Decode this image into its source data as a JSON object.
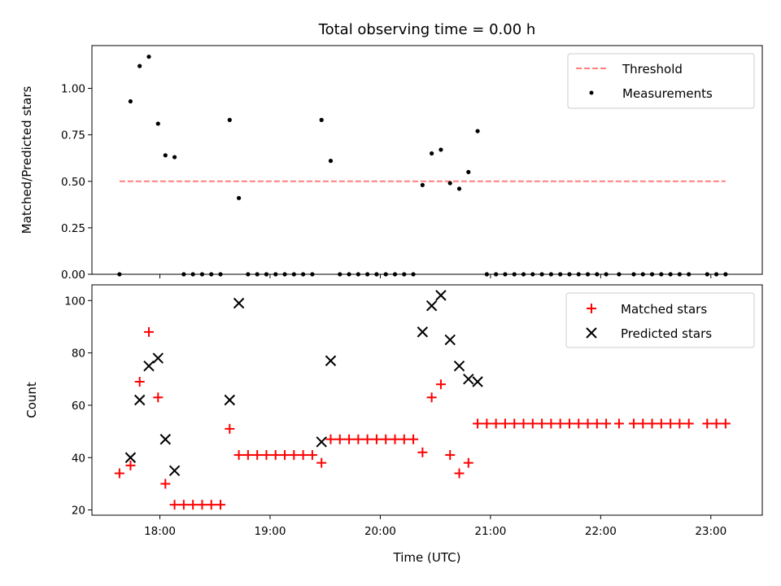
{
  "figure": {
    "title": "Total observing time = 0.00 h"
  },
  "chart_data": [
    {
      "type": "scatter",
      "ylabel": "Matched/Predicted stars",
      "xlabel": "",
      "xlim": [
        "17:23",
        "23:28"
      ],
      "ylim": [
        0,
        1.23
      ],
      "x_ticks": [
        "18:00",
        "19:00",
        "20:00",
        "21:00",
        "22:00",
        "23:00"
      ],
      "y_ticks": [
        "0.00",
        "0.25",
        "0.50",
        "0.75",
        "1.00"
      ],
      "grid": false,
      "legend": "top-right",
      "series": [
        {
          "name": "Threshold",
          "kind": "line",
          "style": "dashed",
          "color": "#ff7f7f",
          "x": [
            "17:38",
            "23:08"
          ],
          "y": [
            0.5,
            0.5
          ]
        },
        {
          "name": "Measurements",
          "kind": "scatter",
          "marker": "dot",
          "color": "#000000",
          "x": [
            "17:38",
            "17:44",
            "17:49",
            "17:54",
            "17:59",
            "18:03",
            "18:08",
            "18:13",
            "18:18",
            "18:23",
            "18:28",
            "18:33",
            "18:38",
            "18:43",
            "18:48",
            "18:53",
            "18:58",
            "19:03",
            "19:08",
            "19:13",
            "19:18",
            "19:23",
            "19:28",
            "19:33",
            "19:38",
            "19:43",
            "19:48",
            "19:53",
            "19:58",
            "20:03",
            "20:08",
            "20:13",
            "20:18",
            "20:23",
            "20:28",
            "20:33",
            "20:38",
            "20:43",
            "20:48",
            "20:53",
            "20:58",
            "21:03",
            "21:08",
            "21:13",
            "21:18",
            "21:23",
            "21:28",
            "21:33",
            "21:38",
            "21:43",
            "21:48",
            "21:53",
            "21:58",
            "22:03",
            "22:10",
            "22:18",
            "22:23",
            "22:28",
            "22:33",
            "22:38",
            "22:43",
            "22:48",
            "22:58",
            "23:03",
            "23:08"
          ],
          "y": [
            0.0,
            0.93,
            1.12,
            1.17,
            0.81,
            0.64,
            0.63,
            0.0,
            0.0,
            0.0,
            0.0,
            0.0,
            0.83,
            0.41,
            0.0,
            0.0,
            0.0,
            0.0,
            0.0,
            0.0,
            0.0,
            0.0,
            0.83,
            0.61,
            0.0,
            0.0,
            0.0,
            0.0,
            0.0,
            0.0,
            0.0,
            0.0,
            0.0,
            0.48,
            0.65,
            0.67,
            0.49,
            0.46,
            0.55,
            0.77,
            0.0,
            0.0,
            0.0,
            0.0,
            0.0,
            0.0,
            0.0,
            0.0,
            0.0,
            0.0,
            0.0,
            0.0,
            0.0,
            0.0,
            0.0,
            0.0,
            0.0,
            0.0,
            0.0,
            0.0,
            0.0,
            0.0,
            0.0,
            0.0,
            0.0
          ]
        }
      ]
    },
    {
      "type": "scatter",
      "ylabel": "Count",
      "xlabel": "Time (UTC)",
      "xlim": [
        "17:23",
        "23:28"
      ],
      "ylim": [
        18,
        106
      ],
      "x_ticks": [
        "18:00",
        "19:00",
        "20:00",
        "21:00",
        "22:00",
        "23:00"
      ],
      "y_ticks": [
        "20",
        "40",
        "60",
        "80",
        "100"
      ],
      "grid": false,
      "legend": "top-right",
      "series": [
        {
          "name": "Matched stars",
          "kind": "scatter",
          "marker": "plus",
          "color": "#ff0000",
          "x": [
            "17:38",
            "17:44",
            "17:49",
            "17:54",
            "17:59",
            "18:03",
            "18:08",
            "18:13",
            "18:18",
            "18:23",
            "18:28",
            "18:33",
            "18:38",
            "18:43",
            "18:48",
            "18:53",
            "18:58",
            "19:03",
            "19:08",
            "19:13",
            "19:18",
            "19:23",
            "19:28",
            "19:33",
            "19:38",
            "19:43",
            "19:48",
            "19:53",
            "19:58",
            "20:03",
            "20:08",
            "20:13",
            "20:18",
            "20:23",
            "20:28",
            "20:33",
            "20:38",
            "20:43",
            "20:48",
            "20:53",
            "20:58",
            "21:03",
            "21:08",
            "21:13",
            "21:18",
            "21:23",
            "21:28",
            "21:33",
            "21:38",
            "21:43",
            "21:48",
            "21:53",
            "21:58",
            "22:03",
            "22:10",
            "22:18",
            "22:23",
            "22:28",
            "22:33",
            "22:38",
            "22:43",
            "22:48",
            "22:58",
            "23:03",
            "23:08"
          ],
          "y": [
            34,
            37,
            69,
            88,
            63,
            30,
            22,
            22,
            22,
            22,
            22,
            22,
            51,
            41,
            41,
            41,
            41,
            41,
            41,
            41,
            41,
            41,
            38,
            47,
            47,
            47,
            47,
            47,
            47,
            47,
            47,
            47,
            47,
            42,
            63,
            68,
            41,
            34,
            38,
            53,
            53,
            53,
            53,
            53,
            53,
            53,
            53,
            53,
            53,
            53,
            53,
            53,
            53,
            53,
            53,
            53,
            53,
            53,
            53,
            53,
            53,
            53,
            53,
            53,
            53
          ]
        },
        {
          "name": "Predicted stars",
          "kind": "scatter",
          "marker": "x",
          "color": "#000000",
          "x": [
            "17:44",
            "17:49",
            "17:54",
            "17:59",
            "18:03",
            "18:08",
            "18:38",
            "18:43",
            "19:28",
            "19:33",
            "20:23",
            "20:28",
            "20:33",
            "20:38",
            "20:43",
            "20:48",
            "20:53"
          ],
          "y": [
            40,
            62,
            75,
            78,
            47,
            35,
            62,
            99,
            46,
            77,
            88,
            98,
            102,
            85,
            75,
            70,
            69
          ]
        }
      ]
    }
  ]
}
